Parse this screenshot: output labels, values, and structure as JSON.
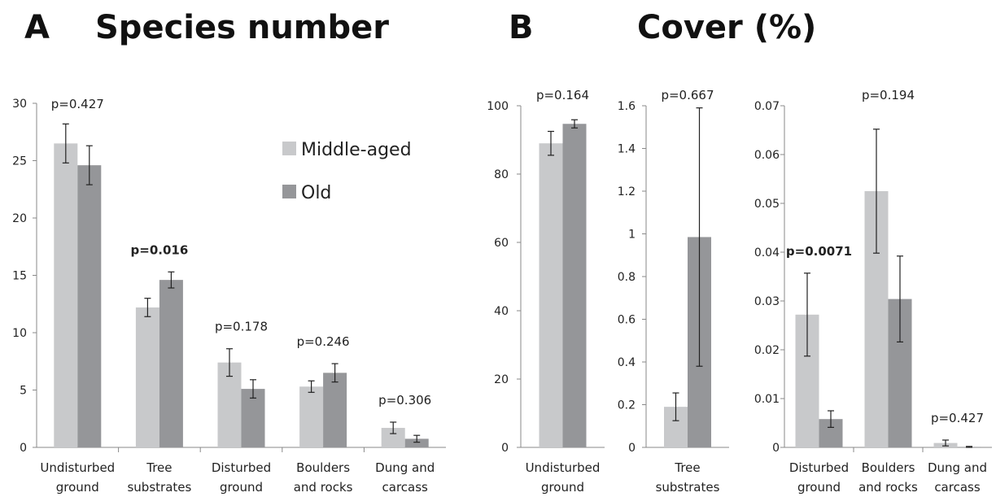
{
  "panels": [
    {
      "letter": "A",
      "title": "Species number"
    },
    {
      "letter": "B",
      "title": "Cover (%)"
    }
  ],
  "colors": {
    "middle_aged": "#c8c9cb",
    "old": "#959699",
    "axis": "#888888",
    "error_bar": "#222222"
  },
  "chart_data": [
    {
      "type": "bar",
      "title": "Species number",
      "categories": [
        [
          "Undisturbed",
          "ground"
        ],
        [
          "Tree",
          "substrates"
        ],
        [
          "Disturbed",
          "ground"
        ],
        [
          "Boulders",
          "and rocks"
        ],
        [
          "Dung and",
          "carcass"
        ]
      ],
      "series": [
        {
          "name": "Middle-aged",
          "values": [
            26.5,
            12.2,
            7.4,
            5.3,
            1.7
          ],
          "errors": [
            1.7,
            0.8,
            1.2,
            0.5,
            0.5
          ]
        },
        {
          "name": "Old",
          "values": [
            24.6,
            14.6,
            5.1,
            6.5,
            0.75
          ],
          "errors": [
            1.7,
            0.7,
            0.8,
            0.8,
            0.3
          ]
        }
      ],
      "p_values": [
        "p=0.427",
        "p=0.016",
        "p=0.178",
        "p=0.246",
        "p=0.306"
      ],
      "p_bold": [
        false,
        true,
        false,
        false,
        false
      ],
      "ylim": [
        0,
        30
      ],
      "yticks": [
        "0",
        "5",
        "10",
        "15",
        "20",
        "25",
        "30"
      ],
      "legend": [
        "Middle-aged",
        "Old"
      ],
      "legend_position": "top-right"
    },
    {
      "type": "bar",
      "title": "Cover (%)",
      "categories": [
        [
          "Undisturbed",
          "ground"
        ]
      ],
      "series": [
        {
          "name": "Middle-aged",
          "values": [
            89.0
          ],
          "errors": [
            3.5
          ]
        },
        {
          "name": "Old",
          "values": [
            94.7
          ],
          "errors": [
            1.2
          ]
        }
      ],
      "p_values": [
        "p=0.164"
      ],
      "p_bold": [
        false
      ],
      "ylim": [
        0,
        100
      ],
      "yticks": [
        "0",
        "20",
        "40",
        "60",
        "80",
        "100"
      ]
    },
    {
      "type": "bar",
      "title": "Cover (%)",
      "categories": [
        [
          "Tree",
          "substrates"
        ]
      ],
      "series": [
        {
          "name": "Middle-aged",
          "values": [
            0.19
          ],
          "errors": [
            0.065
          ]
        },
        {
          "name": "Old",
          "values": [
            0.985
          ],
          "errors": [
            0.605
          ]
        }
      ],
      "p_values": [
        "p=0.667"
      ],
      "p_bold": [
        false
      ],
      "ylim": [
        0,
        1.6
      ],
      "yticks": [
        "0",
        "0.2",
        "0.4",
        "0.6",
        "0.8",
        "1",
        "1.2",
        "1.4",
        "1.6"
      ]
    },
    {
      "type": "bar",
      "title": "Cover (%)",
      "categories": [
        [
          "Disturbed",
          "ground"
        ],
        [
          "Boulders",
          "and rocks"
        ],
        [
          "Dung and",
          "carcass"
        ]
      ],
      "series": [
        {
          "name": "Middle-aged",
          "values": [
            0.0272,
            0.0525,
            0.0009
          ],
          "errors": [
            0.0085,
            0.0127,
            0.0006
          ]
        },
        {
          "name": "Old",
          "values": [
            0.0058,
            0.0304,
            0.0001
          ],
          "errors": [
            0.0017,
            0.0088,
            0.0001
          ]
        }
      ],
      "p_values": [
        "p=0.0071",
        "p=0.194",
        "p=0.427"
      ],
      "p_bold": [
        true,
        false,
        false
      ],
      "ylim": [
        0,
        0.07
      ],
      "yticks": [
        "0",
        "0.01",
        "0.02",
        "0.03",
        "0.04",
        "0.05",
        "0.06",
        "0.07"
      ]
    }
  ]
}
